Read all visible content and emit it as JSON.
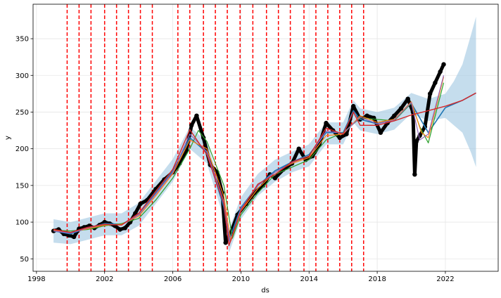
{
  "chart_data": {
    "type": "line",
    "title": "",
    "xlabel": "ds",
    "ylabel": "y",
    "xlim": [
      1997.8,
      2025.1
    ],
    "ylim": [
      33,
      397
    ],
    "x_ticks": [
      1998,
      2002,
      2006,
      2010,
      2014,
      2018,
      2022
    ],
    "y_ticks": [
      50,
      100,
      150,
      200,
      250,
      300,
      350
    ],
    "grid": true,
    "legend": "none",
    "colors": {
      "observed": "#000000",
      "forecast": "#1f77b4",
      "uncertainty": "#a6cbe4",
      "changepoints": "#ff0000",
      "trend": "#d62728",
      "rolling_green": "#2ca02c",
      "rolling_orange": "#ff7f0e",
      "rolling_purple": "#9467bd"
    },
    "changepoints": [
      1999.8,
      2000.5,
      2001.2,
      2002.0,
      2002.7,
      2003.4,
      2004.1,
      2004.8,
      2006.3,
      2007.0,
      2007.8,
      2008.5,
      2009.2,
      2009.95,
      2010.7,
      2011.5,
      2012.2,
      2012.9,
      2013.7,
      2014.4,
      2015.1,
      2015.8,
      2016.5,
      2017.2
    ],
    "series": [
      {
        "id": "observed",
        "x": [
          1999.0,
          1999.3,
          1999.6,
          1999.9,
          2000.2,
          2000.5,
          2000.8,
          2001.1,
          2001.4,
          2001.7,
          2002.0,
          2002.3,
          2002.6,
          2002.9,
          2003.2,
          2003.5,
          2003.8,
          2004.1,
          2004.5,
          2005.0,
          2005.5,
          2006.0,
          2006.4,
          2006.8,
          2007.1,
          2007.4,
          2007.8,
          2008.2,
          2008.6,
          2008.9,
          2009.1,
          2009.4,
          2009.8,
          2010.3,
          2010.8,
          2011.3,
          2011.7,
          2012.0,
          2012.5,
          2013.0,
          2013.4,
          2013.8,
          2014.2,
          2014.6,
          2015.0,
          2015.4,
          2015.8,
          2016.2,
          2016.6,
          2017.0,
          2017.4,
          2017.8,
          2018.2,
          2018.6,
          2019.0,
          2019.4,
          2019.8,
          2020.1,
          2020.2,
          2020.3,
          2020.5,
          2020.8,
          2021.1,
          2021.4,
          2021.7,
          2021.9
        ],
        "y": [
          88,
          90,
          84,
          82,
          80,
          91,
          93,
          95,
          92,
          96,
          100,
          98,
          95,
          90,
          92,
          100,
          112,
          125,
          130,
          145,
          158,
          168,
          180,
          198,
          232,
          245,
          215,
          178,
          168,
          140,
          72,
          85,
          110,
          125,
          140,
          150,
          165,
          160,
          172,
          180,
          200,
          185,
          190,
          205,
          235,
          225,
          215,
          220,
          258,
          240,
          245,
          242,
          222,
          235,
          245,
          255,
          268,
          250,
          165,
          210,
          218,
          230,
          275,
          290,
          305,
          315
        ]
      },
      {
        "id": "forecast",
        "x": [
          1999.0,
          2000.0,
          2001.0,
          2002.0,
          2003.0,
          2004.0,
          2005.0,
          2006.0,
          2007.0,
          2008.0,
          2009.0,
          2009.3,
          2010.0,
          2011.0,
          2012.0,
          2013.0,
          2014.0,
          2015.0,
          2016.0,
          2016.6,
          2017.0,
          2018.0,
          2019.0,
          2020.0,
          2021.0,
          2022.0,
          2023.0,
          2023.8
        ],
        "y": [
          88,
          84,
          92,
          98,
          97,
          110,
          140,
          170,
          215,
          195,
          120,
          75,
          120,
          150,
          170,
          182,
          192,
          222,
          222,
          252,
          240,
          234,
          240,
          262,
          222,
          256,
          266,
          276
        ]
      },
      {
        "id": "trend",
        "x": [
          1999.0,
          2000.0,
          2001.0,
          2002.0,
          2003.0,
          2004.0,
          2005.0,
          2006.0,
          2007.0,
          2008.0,
          2009.0,
          2009.3,
          2010.0,
          2011.0,
          2012.0,
          2013.0,
          2014.0,
          2015.0,
          2016.0,
          2016.6,
          2017.0,
          2018.0,
          2019.0,
          2020.0,
          2021.0,
          2022.0,
          2023.0,
          2023.8
        ],
        "y": [
          90,
          86,
          93,
          97,
          96,
          112,
          142,
          172,
          226,
          192,
          125,
          68,
          116,
          152,
          165,
          182,
          190,
          228,
          220,
          250,
          232,
          232,
          238,
          246,
          252,
          258,
          266,
          276
        ]
      },
      {
        "id": "rolling_green",
        "x": [
          1999.0,
          2000.0,
          2001.0,
          2002.0,
          2003.0,
          2004.0,
          2005.0,
          2006.0,
          2007.0,
          2007.5,
          2008.0,
          2009.0,
          2009.5,
          2010.0,
          2011.0,
          2012.0,
          2013.0,
          2014.0,
          2015.0,
          2016.0,
          2017.0,
          2018.0,
          2019.0,
          2020.0,
          2020.5,
          2021.0,
          2021.9
        ],
        "y": [
          89,
          88,
          90,
          95,
          98,
          105,
          130,
          160,
          200,
          225,
          210,
          150,
          78,
          110,
          140,
          165,
          175,
          185,
          212,
          222,
          242,
          240,
          238,
          262,
          230,
          208,
          290
        ]
      },
      {
        "id": "rolling_orange",
        "x": [
          1999.0,
          2000.0,
          2001.0,
          2002.0,
          2003.0,
          2004.0,
          2005.0,
          2006.0,
          2007.0,
          2008.0,
          2009.0,
          2009.4,
          2010.0,
          2011.0,
          2012.0,
          2013.0,
          2014.0,
          2015.0,
          2016.0,
          2017.0,
          2018.0,
          2019.0,
          2020.0,
          2020.6,
          2021.0,
          2021.9
        ],
        "y": [
          89,
          86,
          91,
          96,
          97,
          108,
          136,
          166,
          212,
          200,
          135,
          74,
          115,
          146,
          168,
          180,
          188,
          218,
          220,
          245,
          236,
          240,
          264,
          222,
          215,
          298
        ]
      },
      {
        "id": "rolling_purple",
        "x": [
          1999.0,
          2000.0,
          2001.0,
          2002.0,
          2003.0,
          2004.0,
          2005.0,
          2006.0,
          2007.0,
          2008.0,
          2009.0,
          2009.35,
          2010.0,
          2011.0,
          2012.0,
          2013.0,
          2014.0,
          2015.0,
          2016.0,
          2017.0,
          2018.0,
          2019.0,
          2020.0,
          2020.5,
          2021.0,
          2021.9
        ],
        "y": [
          88,
          85,
          92,
          97,
          96,
          110,
          138,
          168,
          220,
          196,
          128,
          72,
          118,
          150,
          168,
          181,
          190,
          224,
          221,
          243,
          234,
          239,
          263,
          212,
          220,
          300
        ]
      }
    ],
    "uncertainty_band": {
      "x": [
        1999.0,
        2000.0,
        2001.0,
        2002.0,
        2003.0,
        2004.0,
        2005.0,
        2006.0,
        2007.0,
        2008.0,
        2009.0,
        2009.3,
        2010.0,
        2011.0,
        2012.0,
        2013.0,
        2014.0,
        2015.0,
        2016.0,
        2016.6,
        2017.0,
        2018.0,
        2019.0,
        2020.0,
        2021.0,
        2022.0,
        2022.5,
        2023.0,
        2023.5,
        2023.8
      ],
      "lower": [
        72,
        70,
        76,
        82,
        82,
        95,
        125,
        155,
        200,
        180,
        105,
        58,
        104,
        136,
        155,
        168,
        176,
        206,
        206,
        236,
        225,
        220,
        226,
        248,
        238,
        242,
        232,
        222,
        195,
        175
      ],
      "upper": [
        104,
        100,
        106,
        112,
        112,
        126,
        156,
        186,
        230,
        210,
        135,
        90,
        134,
        166,
        185,
        196,
        206,
        236,
        236,
        266,
        255,
        250,
        256,
        276,
        268,
        275,
        292,
        315,
        355,
        380
      ]
    }
  }
}
